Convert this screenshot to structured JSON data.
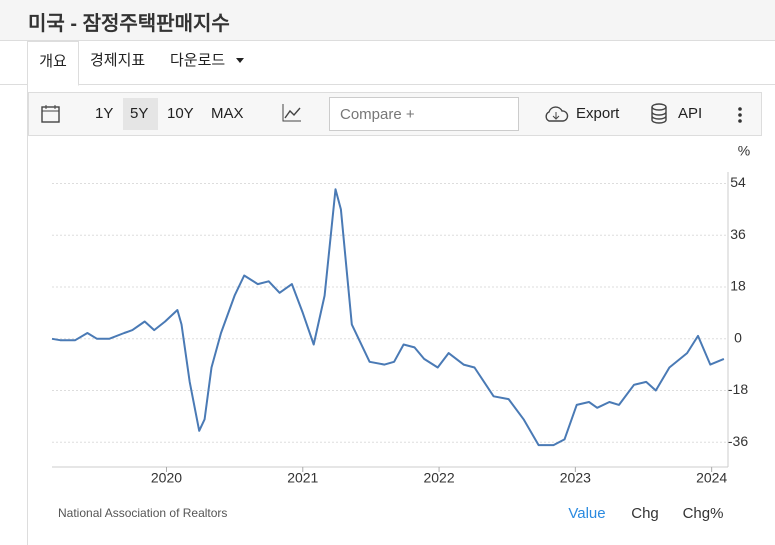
{
  "header": {
    "title": "미국 - 잠정주택판매지수"
  },
  "tabs": [
    "개요",
    "경제지표",
    "다운로드"
  ],
  "toolbar": {
    "ranges": [
      "1Y",
      "5Y",
      "10Y",
      "MAX"
    ],
    "compare": "Compare +",
    "export": "Export",
    "api": "API"
  },
  "chart_data": {
    "type": "line",
    "unit": "%",
    "x": [
      2019.16,
      2019.22,
      2019.33,
      2019.42,
      2019.49,
      2019.58,
      2019.69,
      2019.75,
      2019.84,
      2019.91,
      2019.99,
      2020.08,
      2020.11,
      2020.17,
      2020.24,
      2020.28,
      2020.33,
      2020.4,
      2020.5,
      2020.57,
      2020.67,
      2020.75,
      2020.83,
      2020.92,
      2021.0,
      2021.08,
      2021.16,
      2021.24,
      2021.28,
      2021.36,
      2021.49,
      2021.6,
      2021.67,
      2021.74,
      2021.82,
      2021.89,
      2021.99,
      2022.07,
      2022.18,
      2022.26,
      2022.4,
      2022.51,
      2022.62,
      2022.73,
      2022.84,
      2022.92,
      2023.01,
      2023.1,
      2023.16,
      2023.25,
      2023.32,
      2023.43,
      2023.52,
      2023.59,
      2023.69,
      2023.82,
      2023.9,
      2023.99,
      2024.09
    ],
    "series": [
      {
        "name": "Value",
        "color": "#4a7ab5",
        "values": [
          0,
          -0.5,
          -0.5,
          2,
          0,
          0,
          2,
          3,
          6,
          3,
          6,
          10,
          5,
          -15,
          -32,
          -28,
          -10,
          2,
          15,
          22,
          19,
          20,
          16,
          19,
          9,
          -2,
          15,
          52,
          45,
          5,
          -8,
          -9,
          -8,
          -2,
          -3,
          -7,
          -10,
          -5,
          -9,
          -10,
          -20,
          -21,
          -28,
          -37,
          -37,
          -35,
          -23,
          -22,
          -24,
          -22,
          -23,
          -16,
          -15,
          -18,
          -10,
          -5,
          1,
          -9,
          -7
        ]
      }
    ],
    "xlim": [
      2019.16,
      2024.12
    ],
    "xticks": [
      2020,
      2021,
      2022,
      2023,
      2024
    ],
    "ylim": [
      -44.6,
      58
    ],
    "yticks": [
      54,
      36,
      18,
      0,
      -18,
      -36
    ],
    "grid": true
  },
  "footer": {
    "source": "National Association of Realtors",
    "views": [
      "Value",
      "Chg",
      "Chg%"
    ]
  }
}
